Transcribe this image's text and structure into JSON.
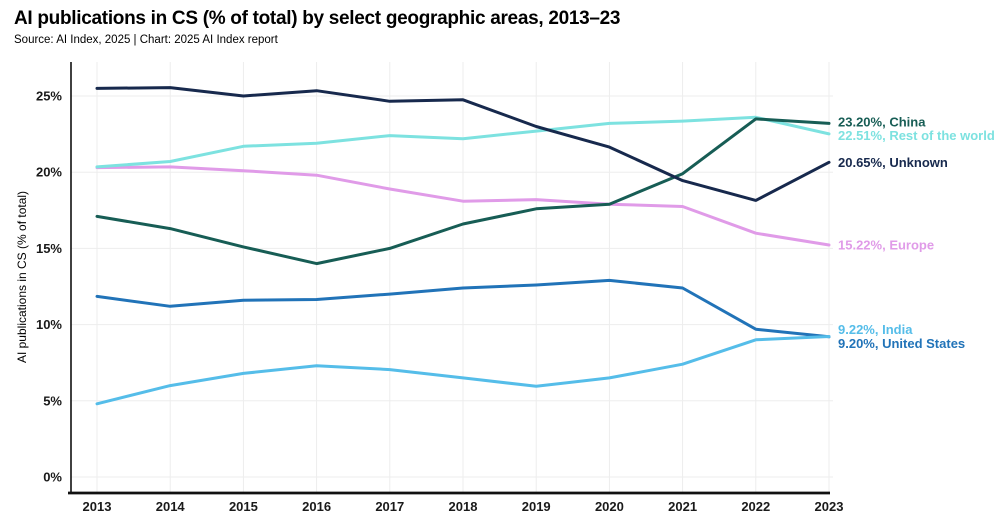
{
  "header": {
    "title": "AI publications in CS (% of total) by select geographic areas, 2013–23",
    "source": "Source: AI Index, 2025 | Chart: 2025 AI Index report"
  },
  "chart_data": {
    "type": "line",
    "title": "AI publications in CS (% of total) by select geographic areas, 2013–23",
    "xlabel": "",
    "ylabel": "AI publications in CS (% of total)",
    "x": [
      2013,
      2014,
      2015,
      2016,
      2017,
      2018,
      2019,
      2020,
      2021,
      2022,
      2023
    ],
    "ylim": [
      0,
      27
    ],
    "yticks": [
      0,
      5,
      10,
      15,
      20,
      25
    ],
    "ytick_suffix": "%",
    "grid": true,
    "legend_position": "right-end-labels",
    "colors": {
      "axis": "#111111",
      "grid": "#ededed",
      "tick_text": "#1a1a1a"
    },
    "series": [
      {
        "name": "China",
        "color": "#175d55",
        "end_label": "23.20%, China",
        "values": [
          17.1,
          16.3,
          15.1,
          14.0,
          15.0,
          16.6,
          17.6,
          17.9,
          19.9,
          23.5,
          23.2
        ]
      },
      {
        "name": "Rest of the world",
        "color": "#7de2e0",
        "end_label": "22.51%, Rest of the world",
        "values": [
          20.35,
          20.7,
          21.7,
          21.9,
          22.4,
          22.2,
          22.7,
          23.2,
          23.35,
          23.6,
          22.51
        ]
      },
      {
        "name": "Unknown",
        "color": "#17294d",
        "end_label": "20.65%, Unknown",
        "values": [
          25.5,
          25.55,
          25.0,
          25.35,
          24.65,
          24.75,
          23.0,
          21.65,
          19.45,
          18.15,
          20.65
        ]
      },
      {
        "name": "Europe",
        "color": "#e09be8",
        "end_label": "15.22%, Europe",
        "values": [
          20.3,
          20.35,
          20.1,
          19.8,
          18.9,
          18.1,
          18.2,
          17.9,
          17.75,
          16.0,
          15.22
        ]
      },
      {
        "name": "India",
        "color": "#55bde9",
        "end_label": "9.22%, India",
        "values": [
          4.8,
          6.0,
          6.8,
          7.3,
          7.05,
          6.5,
          5.95,
          6.5,
          7.4,
          9.0,
          9.22
        ]
      },
      {
        "name": "United States",
        "color": "#2173b8",
        "end_label": "9.20%, United States",
        "values": [
          11.85,
          11.2,
          11.6,
          11.65,
          12.0,
          12.4,
          12.6,
          12.9,
          12.4,
          9.7,
          9.2
        ]
      }
    ]
  }
}
